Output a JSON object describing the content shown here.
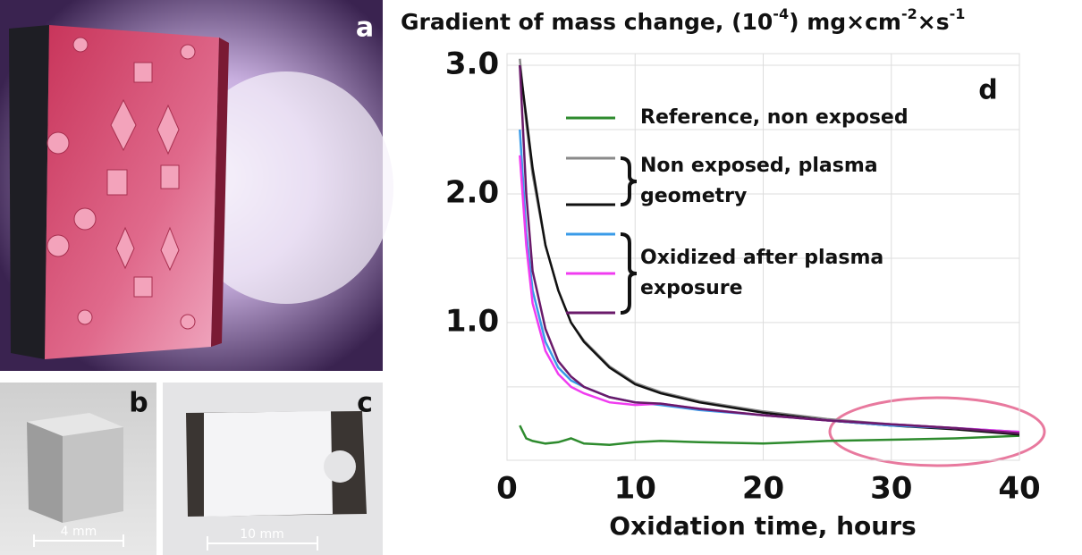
{
  "panels": {
    "a": "a",
    "b": "b",
    "c": "c",
    "scale_b": "4 mm",
    "scale_c": "10 mm"
  },
  "chart_data": {
    "type": "line",
    "panel_label": "d",
    "title": [
      "Gradient of mass change, (10",
      "-4",
      ") mg×cm",
      "-2",
      "×s",
      "-1"
    ],
    "x_label": "Oxidation time, hours",
    "x": [
      1,
      1.5,
      2,
      3,
      4,
      5,
      6,
      8,
      10,
      12,
      15,
      20,
      25,
      30,
      35,
      40
    ],
    "xlim": [
      0,
      40
    ],
    "xticks": [
      0,
      10,
      20,
      30,
      40
    ],
    "ylim": [
      -0.07,
      3.09
    ],
    "yticks": [
      {
        "value": 1,
        "label": "1.0"
      },
      {
        "value": 2,
        "label": "2.0"
      },
      {
        "value": 3,
        "label": "3.0"
      }
    ],
    "minor_yticks": [
      0.5,
      1.5,
      2.5
    ],
    "grid": true,
    "groups": [
      {
        "label": [
          "Reference, non exposed"
        ],
        "brace": false,
        "series": [
          {
            "color": "#2e8b2e",
            "values": [
              0.2,
              0.1,
              0.08,
              0.06,
              0.07,
              0.1,
              0.06,
              0.05,
              0.07,
              0.08,
              0.07,
              0.06,
              0.08,
              0.09,
              0.1,
              0.12
            ]
          }
        ]
      },
      {
        "label": [
          "Non exposed, plasma",
          "geometry"
        ],
        "brace": true,
        "series": [
          {
            "color": "#8a8a8a",
            "values": [
              3.05,
              2.55,
              2.15,
              1.6,
              1.25,
              1.0,
              0.86,
              0.66,
              0.53,
              0.46,
              0.39,
              0.31,
              0.25,
              0.21,
              0.18,
              0.14
            ]
          },
          {
            "color": "#111111",
            "values": [
              3.0,
              2.6,
              2.2,
              1.6,
              1.25,
              1.0,
              0.85,
              0.65,
              0.52,
              0.45,
              0.38,
              0.3,
              0.24,
              0.2,
              0.17,
              0.13
            ]
          }
        ]
      },
      {
        "label": [
          "Oxidized after plasma",
          "exposure"
        ],
        "brace": true,
        "series": [
          {
            "color": "#3a9be8",
            "values": [
              2.5,
              1.7,
              1.25,
              0.85,
              0.65,
              0.55,
              0.5,
              0.42,
              0.38,
              0.36,
              0.32,
              0.28,
              0.24,
              0.2,
              0.18,
              0.15
            ]
          },
          {
            "color": "#f03cf0",
            "values": [
              2.3,
              1.6,
              1.15,
              0.78,
              0.6,
              0.5,
              0.45,
              0.38,
              0.36,
              0.37,
              0.33,
              0.28,
              0.24,
              0.21,
              0.18,
              0.15
            ]
          },
          {
            "color": "#6a1a6a",
            "values": [
              3.0,
              2.0,
              1.4,
              0.95,
              0.7,
              0.58,
              0.5,
              0.42,
              0.38,
              0.37,
              0.33,
              0.28,
              0.24,
              0.21,
              0.18,
              0.14
            ]
          }
        ]
      }
    ]
  }
}
